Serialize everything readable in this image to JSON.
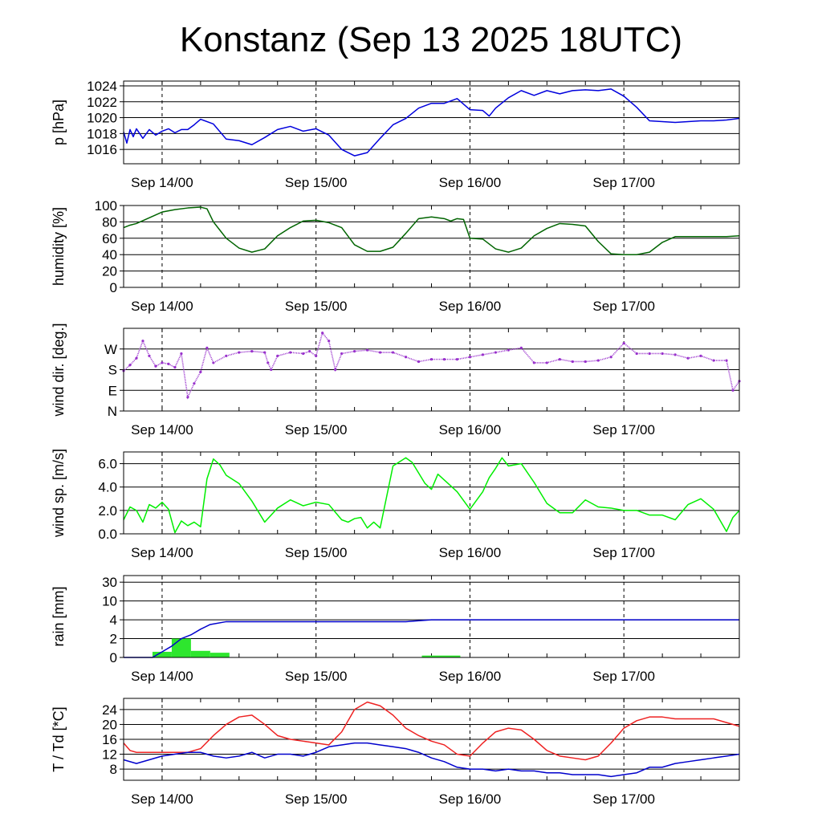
{
  "title": "Konstanz (Sep 13 2025 18UTC)",
  "chart_data": [
    {
      "type": "line",
      "ylabel": "p [hPa]",
      "ylim": [
        1014.2,
        1024.6
      ],
      "yticks": [
        "1016",
        "1018",
        "1020",
        "1022",
        "1024"
      ],
      "grid": true,
      "x_hours_since_start": true,
      "series": [
        {
          "color": "#0000dd",
          "x": [
            0,
            0.5,
            1,
            1.5,
            2,
            3,
            4,
            5,
            6,
            7,
            8,
            9,
            10,
            11,
            12,
            14,
            16,
            18,
            20,
            22,
            24,
            26,
            28,
            30,
            32,
            34,
            36,
            38,
            40,
            42,
            44,
            46,
            48,
            50,
            52,
            54,
            56,
            57,
            58,
            60,
            62,
            64,
            66,
            68,
            70,
            72,
            74,
            76,
            78,
            80,
            82,
            84,
            86,
            88,
            90,
            92,
            94,
            96
          ],
          "y": [
            1018.2,
            1016.8,
            1018.5,
            1017.6,
            1018.6,
            1017.4,
            1018.5,
            1017.8,
            1018.3,
            1018.6,
            1018.1,
            1018.5,
            1018.5,
            1019.1,
            1019.8,
            1019.2,
            1017.3,
            1017.1,
            1016.6,
            1017.5,
            1018.5,
            1018.9,
            1018.3,
            1018.6,
            1017.8,
            1016.0,
            1015.2,
            1015.6,
            1017.4,
            1019.1,
            1019.9,
            1021.2,
            1021.8,
            1021.8,
            1022.4,
            1021.0,
            1020.9,
            1020.2,
            1021.2,
            1022.5,
            1023.4,
            1022.8,
            1023.4,
            1023.0,
            1023.4,
            1023.5,
            1023.4,
            1023.6,
            1022.7,
            1021.3,
            1019.6,
            1019.5,
            1019.4,
            1019.5,
            1019.6,
            1019.6,
            1019.7,
            1019.9
          ]
        }
      ]
    },
    {
      "type": "line",
      "ylabel": "humidity [%]",
      "ylim": [
        0,
        100
      ],
      "yticks": [
        "0",
        "20",
        "40",
        "60",
        "80",
        "100"
      ],
      "grid": true,
      "series": [
        {
          "color": "#006400",
          "x": [
            0,
            1,
            2,
            4,
            6,
            8,
            10,
            12,
            13,
            14,
            15,
            16,
            18,
            20,
            22,
            24,
            26,
            28,
            30,
            32,
            34,
            36,
            38,
            40,
            42,
            44,
            46,
            48,
            50,
            51,
            52,
            53,
            54,
            56,
            58,
            60,
            62,
            64,
            66,
            68,
            70,
            72,
            74,
            76,
            78,
            80,
            82,
            84,
            86,
            88,
            90,
            92,
            94,
            96
          ],
          "y": [
            73,
            76,
            78,
            85,
            92,
            95,
            97,
            98,
            96,
            80,
            70,
            60,
            48,
            43,
            47,
            63,
            73,
            81,
            82,
            79,
            73,
            52,
            44,
            44,
            49,
            66,
            84,
            86,
            84,
            81,
            84,
            83,
            60,
            59,
            47,
            43,
            48,
            63,
            72,
            78,
            77,
            75,
            56,
            41,
            40,
            40,
            43,
            55,
            62,
            62,
            62,
            62,
            62,
            63
          ]
        }
      ]
    },
    {
      "type": "scatter",
      "ylabel": "wind dir. [deg.]",
      "ylim": [
        0,
        360
      ],
      "yticks": [
        "N",
        "E",
        "S",
        "W"
      ],
      "ytick_values": [
        0,
        90,
        180,
        270
      ],
      "grid": true,
      "series": [
        {
          "color": "#9932cc",
          "x": [
            0,
            1,
            2,
            3,
            4,
            5,
            6,
            7,
            8,
            9,
            10,
            11,
            12,
            13,
            14,
            16,
            18,
            20,
            22,
            22.5,
            23,
            24,
            26,
            28,
            29,
            30,
            31,
            32,
            33,
            34,
            36,
            38,
            40,
            42,
            44,
            46,
            48,
            50,
            52,
            54,
            56,
            58,
            60,
            62,
            64,
            66,
            68,
            70,
            72,
            74,
            76,
            78,
            80,
            82,
            84,
            86,
            88,
            90,
            92,
            94,
            95,
            96
          ],
          "y": [
            175,
            200,
            230,
            305,
            240,
            195,
            210,
            205,
            190,
            250,
            60,
            120,
            170,
            275,
            210,
            240,
            255,
            260,
            255,
            210,
            180,
            240,
            255,
            250,
            260,
            240,
            340,
            305,
            180,
            250,
            260,
            265,
            255,
            255,
            235,
            215,
            225,
            225,
            225,
            235,
            245,
            255,
            265,
            275,
            210,
            210,
            225,
            215,
            215,
            220,
            235,
            295,
            250,
            250,
            250,
            245,
            230,
            240,
            220,
            220,
            90,
            130
          ]
        }
      ]
    },
    {
      "type": "line",
      "ylabel": "wind sp. [m/s]",
      "ylim": [
        0,
        7
      ],
      "yticks": [
        "0.0",
        "2.0",
        "4.0",
        "6.0"
      ],
      "grid": true,
      "series": [
        {
          "color": "#00ee00",
          "x": [
            0,
            1,
            2,
            3,
            4,
            5,
            6,
            7,
            8,
            9,
            10,
            11,
            12,
            13,
            14,
            15,
            16,
            18,
            20,
            22,
            24,
            26,
            28,
            30,
            32,
            34,
            35,
            36,
            37,
            38,
            39,
            40,
            42,
            44,
            45,
            46,
            47,
            48,
            49,
            50,
            52,
            54,
            56,
            57,
            58,
            59,
            60,
            62,
            64,
            66,
            68,
            70,
            72,
            74,
            76,
            78,
            80,
            82,
            84,
            86,
            88,
            90,
            92,
            94,
            95,
            96
          ],
          "y": [
            1.2,
            2.3,
            2.0,
            1.0,
            2.5,
            2.2,
            2.7,
            2.1,
            0.1,
            1.1,
            0.7,
            1.0,
            0.6,
            4.7,
            6.4,
            5.9,
            5.0,
            4.3,
            2.8,
            1.0,
            2.2,
            2.9,
            2.4,
            2.7,
            2.5,
            1.2,
            1.0,
            1.3,
            1.4,
            0.5,
            1.0,
            0.5,
            5.8,
            6.5,
            6.1,
            5.2,
            4.3,
            3.8,
            5.1,
            4.6,
            3.6,
            2.1,
            3.6,
            4.8,
            5.6,
            6.5,
            5.8,
            6.0,
            4.4,
            2.6,
            1.8,
            1.8,
            2.9,
            2.3,
            2.2,
            2.0,
            2.0,
            1.6,
            1.6,
            1.2,
            2.5,
            3.0,
            2.1,
            0.2,
            1.4,
            2.0
          ]
        }
      ]
    },
    {
      "type": "bar",
      "ylabel": "rain [mm]",
      "yticks": [
        "0",
        "2",
        "4",
        "10",
        "30"
      ],
      "ytick_values": [
        0,
        2,
        4,
        10,
        30
      ],
      "grid": true,
      "bars": {
        "color": "#2ee62e",
        "x_start": [
          4.5,
          7.5,
          10.5,
          13.5,
          46.5
        ],
        "x_end": [
          7.5,
          10.5,
          13.5,
          16.5,
          52.5
        ],
        "values": [
          0.6,
          2.0,
          0.7,
          0.5,
          0.2
        ]
      },
      "series": [
        {
          "name": "",
          "color": "#0000cc",
          "x": [
            0,
            4.5,
            6,
            7.5,
            9,
            10.5,
            12,
            13.5,
            16,
            20,
            30,
            40,
            44,
            48,
            56,
            60,
            70,
            80,
            90,
            96
          ],
          "y": [
            0,
            0,
            0.6,
            1.2,
            2.0,
            2.4,
            3.0,
            3.5,
            3.8,
            3.8,
            3.8,
            3.8,
            3.8,
            4.0,
            4.0,
            4.0,
            4.0,
            4.0,
            4.0,
            4.0
          ]
        }
      ]
    },
    {
      "type": "line",
      "ylabel": "T / Td [*C]",
      "ylim": [
        5,
        27
      ],
      "yticks": [
        "8",
        "12",
        "16",
        "20",
        "24"
      ],
      "grid": true,
      "series": [
        {
          "color": "#ee2222",
          "x": [
            0,
            1,
            2,
            4,
            6,
            8,
            10,
            12,
            14,
            16,
            18,
            20,
            22,
            24,
            26,
            28,
            30,
            32,
            34,
            36,
            38,
            40,
            42,
            44,
            46,
            48,
            50,
            52,
            54,
            56,
            58,
            60,
            62,
            64,
            66,
            68,
            70,
            72,
            74,
            76,
            78,
            80,
            82,
            84,
            86,
            88,
            90,
            92,
            94,
            96
          ],
          "y": [
            15,
            13,
            12.5,
            12.5,
            12.5,
            12.5,
            12.5,
            13.5,
            17,
            20,
            22,
            22.5,
            20,
            17,
            16,
            15.5,
            15,
            14.5,
            18,
            24,
            26,
            25,
            22.5,
            19,
            17,
            15.5,
            14.5,
            12,
            11.5,
            15,
            18,
            19,
            18.5,
            16,
            13,
            11.5,
            11,
            10.5,
            11.5,
            15,
            19,
            21,
            22,
            22,
            21.5,
            21.5,
            21.5,
            21.5,
            20.5,
            19.5
          ]
        },
        {
          "color": "#0000cc",
          "x": [
            0,
            2,
            4,
            6,
            8,
            10,
            12,
            14,
            16,
            18,
            20,
            22,
            24,
            26,
            28,
            30,
            32,
            34,
            36,
            38,
            40,
            42,
            44,
            46,
            48,
            50,
            52,
            54,
            56,
            58,
            60,
            62,
            64,
            66,
            68,
            70,
            72,
            74,
            76,
            78,
            80,
            82,
            84,
            86,
            88,
            90,
            92,
            94,
            96
          ],
          "y": [
            10.5,
            9.5,
            10.5,
            11.5,
            12,
            12.5,
            12.5,
            11.5,
            11,
            11.5,
            12.5,
            11,
            12,
            12,
            11.5,
            12.5,
            14,
            14.5,
            15,
            15,
            14.5,
            14,
            13.5,
            12.5,
            11,
            10,
            8.5,
            8,
            8,
            7.5,
            8,
            7.5,
            7.5,
            7,
            7,
            6.5,
            6.5,
            6.5,
            6,
            6.5,
            7,
            8.5,
            8.5,
            9.5,
            10,
            10.5,
            11,
            11.5,
            12
          ]
        }
      ]
    }
  ],
  "x_axis": {
    "start": "Sep 13 18UTC",
    "tick_labels": [
      "Sep 14/00",
      "Sep 15/00",
      "Sep 16/00",
      "Sep 17/00"
    ],
    "tick_hours": [
      6,
      30,
      54,
      78
    ]
  }
}
